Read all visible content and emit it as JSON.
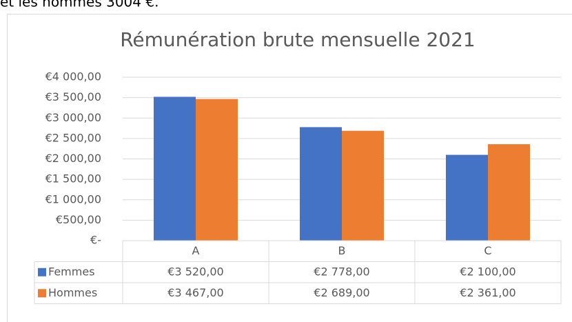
{
  "page_text": "et les hommes 3004 €.",
  "chart_data": {
    "type": "bar",
    "title": "Rémunération brute mensuelle 2021",
    "categories": [
      "A",
      "B",
      "C"
    ],
    "series": [
      {
        "name": "Femmes",
        "color": "#4472c4",
        "values": [
          3520,
          2778,
          2100
        ],
        "value_labels": [
          "€3 520,00",
          "€2 778,00",
          "€2 100,00"
        ]
      },
      {
        "name": "Hommes",
        "color": "#ed7d31",
        "values": [
          3467,
          2689,
          2361
        ],
        "value_labels": [
          "€3 467,00",
          "€2 689,00",
          "€2 361,00"
        ]
      }
    ],
    "ylim": [
      0,
      4000
    ],
    "yticks": [
      {
        "value": 0,
        "label": "€-"
      },
      {
        "value": 500,
        "label": "€500,00"
      },
      {
        "value": 1000,
        "label": "€1 000,00"
      },
      {
        "value": 1500,
        "label": "€1 500,00"
      },
      {
        "value": 2000,
        "label": "€2 000,00"
      },
      {
        "value": 2500,
        "label": "€2 500,00"
      },
      {
        "value": 3000,
        "label": "€3 000,00"
      },
      {
        "value": 3500,
        "label": "€3 500,00"
      },
      {
        "value": 4000,
        "label": "€4 000,00"
      }
    ],
    "grid": true
  }
}
